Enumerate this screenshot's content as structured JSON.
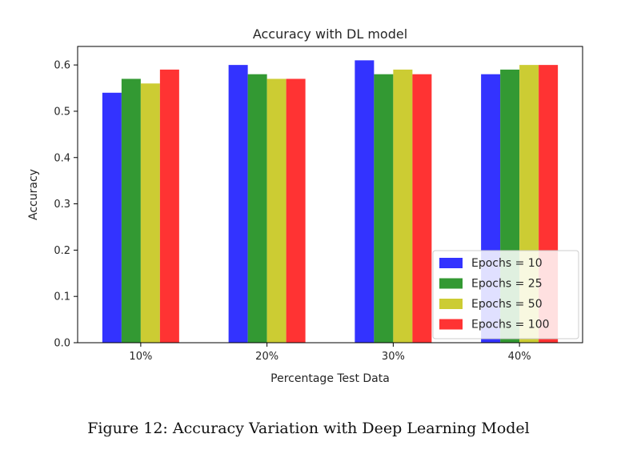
{
  "caption": "Figure 12: Accuracy Variation with Deep Learning Model",
  "chart_data": {
    "type": "bar",
    "title": "Accuracy with DL model",
    "xlabel": "Percentage Test Data",
    "ylabel": "Accuracy",
    "categories": [
      "10%",
      "20%",
      "30%",
      "40%"
    ],
    "ylim": [
      0,
      0.64
    ],
    "yticks": [
      "0.0",
      "0.1",
      "0.2",
      "0.3",
      "0.4",
      "0.5",
      "0.6"
    ],
    "grid": false,
    "legend_position": "lower-right",
    "series": [
      {
        "name": "Epochs = 10",
        "color": "#3333ff",
        "values": [
          0.54,
          0.6,
          0.61,
          0.58
        ]
      },
      {
        "name": "Epochs = 25",
        "color": "#339933",
        "values": [
          0.57,
          0.58,
          0.58,
          0.59
        ]
      },
      {
        "name": "Epochs = 50",
        "color": "#cccc33",
        "values": [
          0.56,
          0.57,
          0.59,
          0.6
        ]
      },
      {
        "name": "Epochs = 100",
        "color": "#ff3333",
        "values": [
          0.59,
          0.57,
          0.58,
          0.6
        ]
      }
    ]
  }
}
